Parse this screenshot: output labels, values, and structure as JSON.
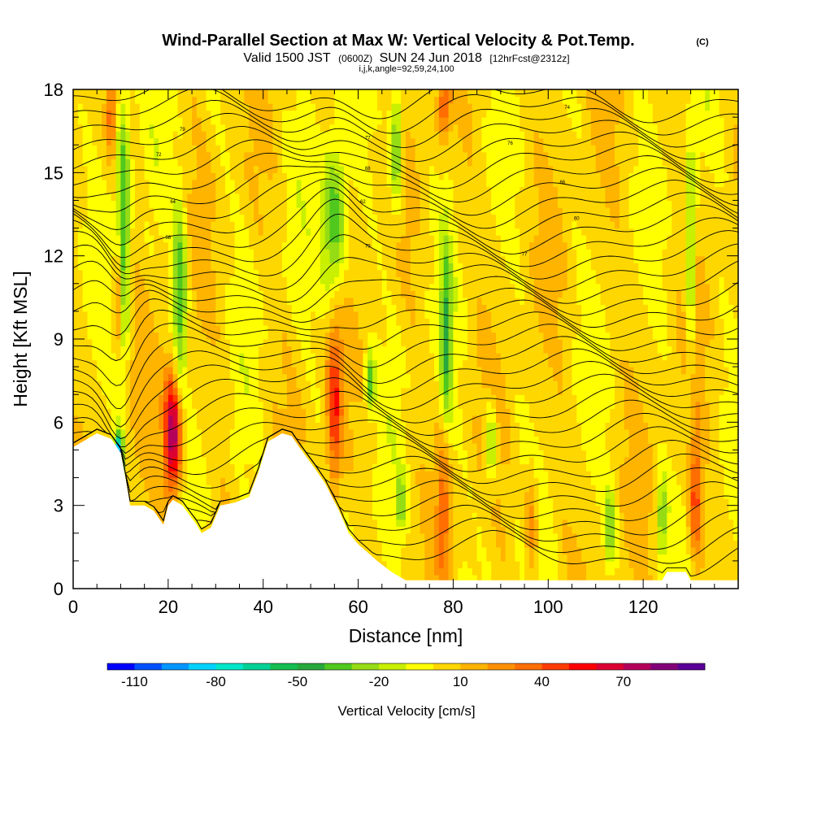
{
  "chart_data": {
    "type": "heatmap",
    "title": "Wind-Parallel Section at Max W: Vertical Velocity & Pot.Temp.",
    "title_mark": "(C)",
    "subtitle_parts": {
      "valid": "Valid 1500 JST",
      "utc": "(0600Z)",
      "date": "SUN 24 Jun 2018",
      "fcst": "[12hrFcst@2312z]"
    },
    "ijk_line": "i,j,k,angle=92,59,24,100",
    "xlabel": "Distance [nm]",
    "ylabel": "Height [Kft MSL]",
    "xlim": [
      0,
      140
    ],
    "ylim": [
      0,
      18
    ],
    "x_ticks": [
      "0",
      "20",
      "40",
      "60",
      "80",
      "100",
      "120"
    ],
    "x_tick_values": [
      0,
      20,
      40,
      60,
      80,
      100,
      120
    ],
    "y_ticks": [
      "0",
      "3",
      "6",
      "9",
      "12",
      "15",
      "18"
    ],
    "y_tick_values": [
      0,
      3,
      6,
      9,
      12,
      15,
      18
    ],
    "colorbar": {
      "label": "Vertical Velocity [cm/s]",
      "tick_labels": [
        "-110",
        "-80",
        "-50",
        "-20",
        "10",
        "40",
        "70"
      ],
      "tick_values": [
        -110,
        -80,
        -50,
        -20,
        10,
        40,
        70
      ],
      "min": -120,
      "max": 100,
      "step": 10,
      "colors": [
        "#0000ff",
        "#0050ff",
        "#0096ff",
        "#00d2ff",
        "#00e6c8",
        "#00d296",
        "#14be50",
        "#28a83c",
        "#50c81e",
        "#96dc14",
        "#c8f000",
        "#ffff00",
        "#ffd700",
        "#ffb400",
        "#ff9100",
        "#ff6e00",
        "#ff3c00",
        "#ff0000",
        "#dc0032",
        "#b4005a",
        "#820078",
        "#5a0096"
      ]
    },
    "terrain_profile": [
      {
        "x": 0,
        "y": 5.1
      },
      {
        "x": 2,
        "y": 5.3
      },
      {
        "x": 5,
        "y": 5.6
      },
      {
        "x": 8,
        "y": 5.4
      },
      {
        "x": 10,
        "y": 4.9
      },
      {
        "x": 11,
        "y": 4.0
      },
      {
        "x": 12,
        "y": 3.0
      },
      {
        "x": 15,
        "y": 3.0
      },
      {
        "x": 17,
        "y": 2.8
      },
      {
        "x": 19,
        "y": 2.3
      },
      {
        "x": 20,
        "y": 3.0
      },
      {
        "x": 21,
        "y": 3.2
      },
      {
        "x": 23,
        "y": 3.0
      },
      {
        "x": 26,
        "y": 2.3
      },
      {
        "x": 27,
        "y": 2.0
      },
      {
        "x": 29,
        "y": 2.2
      },
      {
        "x": 31,
        "y": 3.0
      },
      {
        "x": 34,
        "y": 3.1
      },
      {
        "x": 37,
        "y": 3.3
      },
      {
        "x": 39,
        "y": 4.2
      },
      {
        "x": 41,
        "y": 5.3
      },
      {
        "x": 44,
        "y": 5.6
      },
      {
        "x": 46,
        "y": 5.5
      },
      {
        "x": 48,
        "y": 5.0
      },
      {
        "x": 51,
        "y": 4.3
      },
      {
        "x": 53,
        "y": 3.8
      },
      {
        "x": 56,
        "y": 2.8
      },
      {
        "x": 58,
        "y": 2.0
      },
      {
        "x": 60,
        "y": 1.6
      },
      {
        "x": 64,
        "y": 1.0
      },
      {
        "x": 67,
        "y": 0.6
      },
      {
        "x": 70,
        "y": 0.3
      },
      {
        "x": 80,
        "y": 0.3
      },
      {
        "x": 100,
        "y": 0.3
      },
      {
        "x": 124,
        "y": 0.3
      },
      {
        "x": 125,
        "y": 0.6
      },
      {
        "x": 129,
        "y": 0.6
      },
      {
        "x": 130,
        "y": 0.3
      },
      {
        "x": 140,
        "y": 0.3
      }
    ],
    "updraft_cores": [
      {
        "x": 21.0,
        "y_center": 5.6,
        "y_half": 2.3,
        "x_half": 1.9,
        "peak_w": 80
      },
      {
        "x": 55.0,
        "y_center": 6.6,
        "y_half": 3.3,
        "x_half": 1.6,
        "peak_w": 45
      },
      {
        "x": 9.5,
        "y_center": 10.8,
        "y_half": 2.2,
        "x_half": 1.0,
        "peak_w": 40
      },
      {
        "x": 131.0,
        "y_center": 3.2,
        "y_half": 2.4,
        "x_half": 1.4,
        "peak_w": 40
      },
      {
        "x": 78.0,
        "y_center": 3.2,
        "y_half": 2.8,
        "x_half": 1.3,
        "peak_w": 30
      },
      {
        "x": 96.5,
        "y_center": 2.4,
        "y_half": 2.0,
        "x_half": 1.4,
        "peak_w": 30
      },
      {
        "x": 78.0,
        "y_center": 17.4,
        "y_half": 1.2,
        "x_half": 1.4,
        "peak_w": 35
      },
      {
        "x": 8.0,
        "y_center": 17.0,
        "y_half": 1.4,
        "x_half": 1.0,
        "peak_w": 30
      }
    ],
    "downdraft_cores": [
      {
        "x": 9.5,
        "y_center": 4.8,
        "y_half": 0.8,
        "x_half": 0.9,
        "peak_w": -105
      },
      {
        "x": 10.5,
        "y_center": 13.0,
        "y_half": 5.0,
        "x_half": 1.4,
        "peak_w": -50
      },
      {
        "x": 22.5,
        "y_center": 10.5,
        "y_half": 3.5,
        "x_half": 1.5,
        "peak_w": -45
      },
      {
        "x": 55.0,
        "y_center": 13.0,
        "y_half": 3.0,
        "x_half": 2.5,
        "peak_w": -45
      },
      {
        "x": 68.0,
        "y_center": 16.0,
        "y_half": 2.2,
        "x_half": 1.5,
        "peak_w": -45
      },
      {
        "x": 78.5,
        "y_center": 9.0,
        "y_half": 3.5,
        "x_half": 1.2,
        "peak_w": -40
      },
      {
        "x": 88.0,
        "y_center": 5.3,
        "y_half": 1.6,
        "x_half": 1.2,
        "peak_w": -35
      },
      {
        "x": 62.5,
        "y_center": 7.5,
        "y_half": 1.0,
        "x_half": 1.0,
        "peak_w": -40
      },
      {
        "x": 130.0,
        "y_center": 12.0,
        "y_half": 4.0,
        "x_half": 1.0,
        "peak_w": -35
      },
      {
        "x": 124.0,
        "y_center": 2.6,
        "y_half": 1.4,
        "x_half": 1.2,
        "peak_w": -35
      },
      {
        "x": 113.0,
        "y_center": 2.3,
        "y_half": 1.4,
        "x_half": 1.2,
        "peak_w": -35
      },
      {
        "x": 69.0,
        "y_center": 3.1,
        "y_half": 1.0,
        "x_half": 1.0,
        "peak_w": -30
      }
    ],
    "isentrope_labels": [
      "79",
      "77",
      "76",
      "74",
      "72",
      "68",
      "66",
      "64",
      "62",
      "60",
      "58"
    ]
  }
}
